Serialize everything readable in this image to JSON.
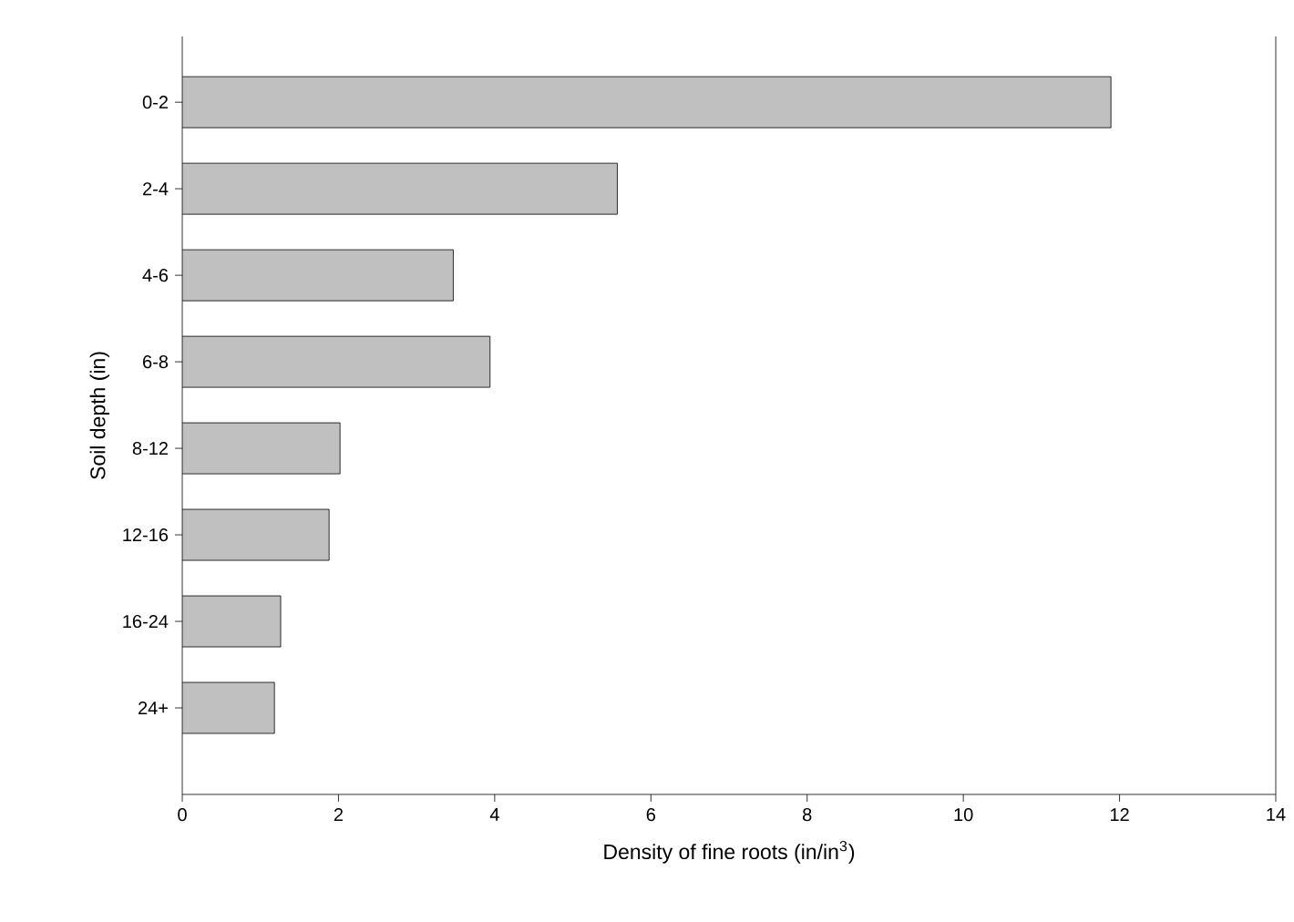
{
  "chart_data": {
    "type": "bar",
    "orientation": "horizontal",
    "xlabel": "Density of fine roots (in/in$^{3}$)",
    "ylabel": "Soil depth (in)",
    "categories": [
      "0-2",
      "2-4",
      "4-6",
      "6-8",
      "8-12",
      "12-16",
      "16-24",
      "24+"
    ],
    "values": [
      11.89,
      5.57,
      3.47,
      3.94,
      2.02,
      1.88,
      1.26,
      1.18
    ],
    "color": "#c0c0c0",
    "xlim": [
      0,
      14
    ],
    "xticks": [
      0,
      2,
      4,
      6,
      8,
      10,
      12,
      14
    ]
  }
}
